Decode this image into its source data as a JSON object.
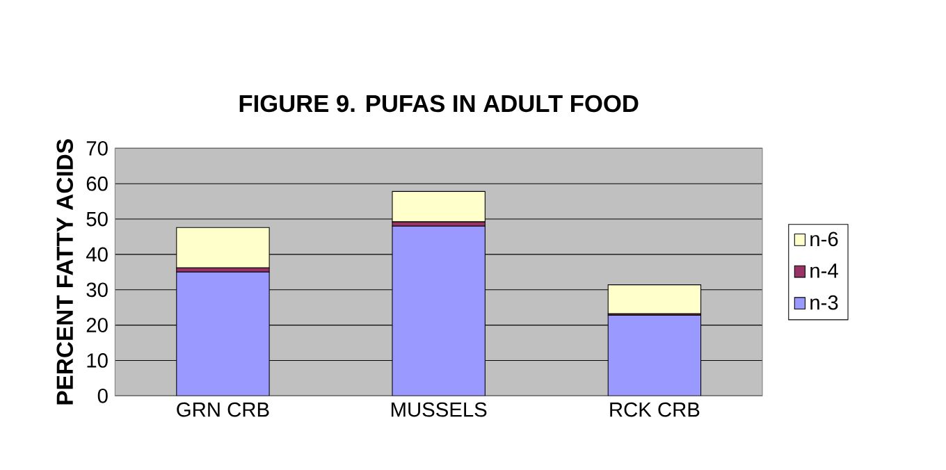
{
  "chart_data": {
    "type": "bar",
    "title": "FIGURE 9. PUFAS IN ADULT FOOD",
    "ylabel": "PERCENT FATTY ACIDS",
    "categories": [
      "GRN CRB",
      "MUSSELS",
      "RCK CRB"
    ],
    "stacked": true,
    "series": [
      {
        "name": "n-3",
        "color": "#9999ff",
        "values": [
          35,
          48,
          22.8
        ]
      },
      {
        "name": "n-4",
        "color": "#993366",
        "values": [
          1.2,
          1.2,
          0.4
        ]
      },
      {
        "name": "n-6",
        "color": "#ffffcc",
        "values": [
          11.4,
          8.6,
          8.2
        ]
      }
    ],
    "ylim": [
      0,
      70
    ],
    "yticks": [
      0,
      10,
      20,
      30,
      40,
      50,
      60,
      70
    ],
    "grid": "y",
    "legend": "right"
  }
}
